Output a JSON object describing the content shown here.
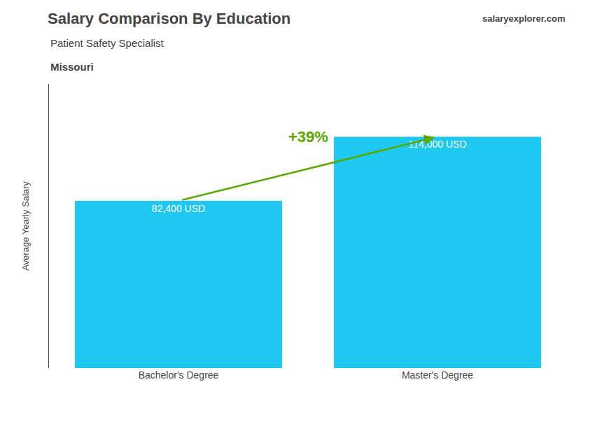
{
  "chart_data": {
    "type": "bar",
    "title": "Salary Comparison By Education",
    "subtitle": "Patient Safety Specialist",
    "ylabel": "Average Yearly Salary",
    "annotations": [
      "Missouri",
      "salaryexplorer.com",
      "+39%"
    ],
    "categories": [
      "Bachelor's Degree",
      "Master's Degree"
    ],
    "values": [
      82400,
      114000
    ],
    "value_labels": [
      "82,400 USD",
      "114,000 USD"
    ],
    "data_labels": true,
    "color": "#1EC8F0",
    "ylim": [
      0,
      140000
    ],
    "tick_labels": "x",
    "grid": false
  }
}
